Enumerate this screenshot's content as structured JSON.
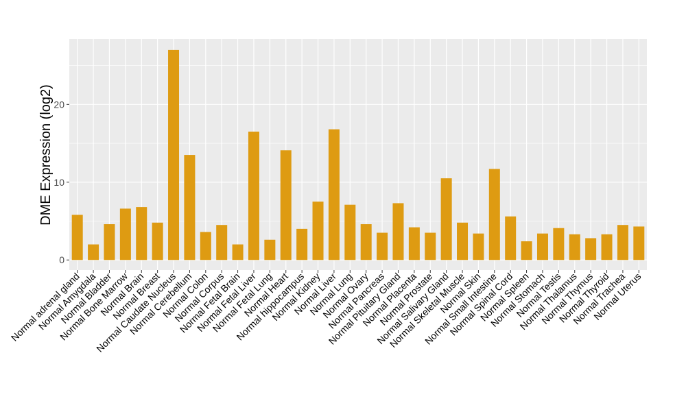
{
  "chart_data": {
    "type": "bar",
    "title": "",
    "xlabel": "",
    "ylabel": "DME Expression (log2)",
    "ylim": [
      -1.3,
      28.4
    ],
    "yticks": [
      0,
      10,
      20
    ],
    "grid": true,
    "bar_color": "#DE9B12",
    "categories": [
      "Normal adrenal gland",
      "Normal Amygdala",
      "Normal Bladder",
      "Normal Bone Marrow",
      "Normal Brain",
      "Normal Breast",
      "Normal Caudate Nucleus",
      "Normal Cerebellum",
      "Normal Colon",
      "Normal Corpus",
      "Normal Fetal Brain",
      "Normal Fetal Liver",
      "Normal Fetal Lung",
      "Normal Heart",
      "Normal hippocampus",
      "Normal Kidney",
      "Normal Liver",
      "Normal Lung",
      "Normal Ovary",
      "Normal Pancreas",
      "Normal Pituitary Gland",
      "Normal Placenta",
      "Normal Prostate",
      "Normal Salivary Gland",
      "Normal Skeletal Muscle",
      "Normal Skin",
      "Normal Small Intestine",
      "Normal Spinal Cord",
      "Normal Spleen",
      "Normal Stomach",
      "Normal Testis",
      "Normal Thalamus",
      "Normal Thymus",
      "Normal Thyroid",
      "Normal Trachea",
      "Normal Uterus"
    ],
    "values": [
      5.8,
      2.0,
      4.6,
      6.6,
      6.8,
      4.8,
      27.0,
      13.5,
      3.6,
      4.5,
      2.0,
      16.5,
      2.6,
      14.1,
      4.0,
      7.5,
      16.8,
      7.1,
      4.6,
      3.5,
      7.3,
      4.2,
      3.5,
      10.5,
      4.8,
      3.4,
      11.7,
      5.6,
      2.4,
      3.4,
      4.1,
      3.3,
      2.8,
      3.3,
      4.5,
      4.3
    ]
  }
}
